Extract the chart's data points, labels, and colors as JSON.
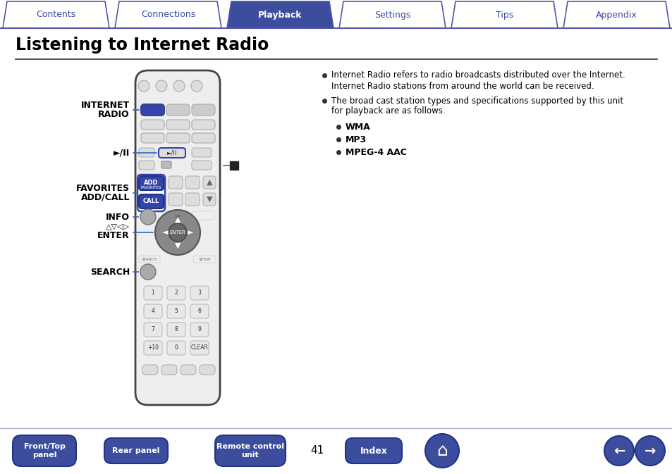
{
  "page_bg": "#ffffff",
  "nav_tabs": [
    "Contents",
    "Connections",
    "Playback",
    "Settings",
    "Tips",
    "Appendix"
  ],
  "nav_active": 2,
  "nav_bg_active": "#3d4d9e",
  "nav_bg_inactive": "#ffffff",
  "nav_border": "#5555aa",
  "nav_text_active": "#ffffff",
  "nav_text_inactive": "#3d4d9e",
  "title": "Listening to Internet Radio",
  "title_color": "#000000",
  "separator_color": "#333333",
  "bullet1_line1": "Internet Radio refers to radio broadcasts distributed over the Internet.",
  "bullet1_line2": "Internet Radio stations from around the world can be received.",
  "bullet2_line1": "The broad cast station types and specifications supported by this unit",
  "bullet2_line2": "for playback are as follows.",
  "sub_bullets": [
    "WMA",
    "MP3",
    "MPEG-4 AAC"
  ],
  "bottom_btn_color": "#3d4d9e",
  "bottom_btn_text": "#ffffff",
  "page_number": "41",
  "remote_body_color": "#eeeeee",
  "remote_border_color": "#444444",
  "highlight_blue": "#3344aa",
  "arrow_color": "#3366bb",
  "label_color": "#000000"
}
